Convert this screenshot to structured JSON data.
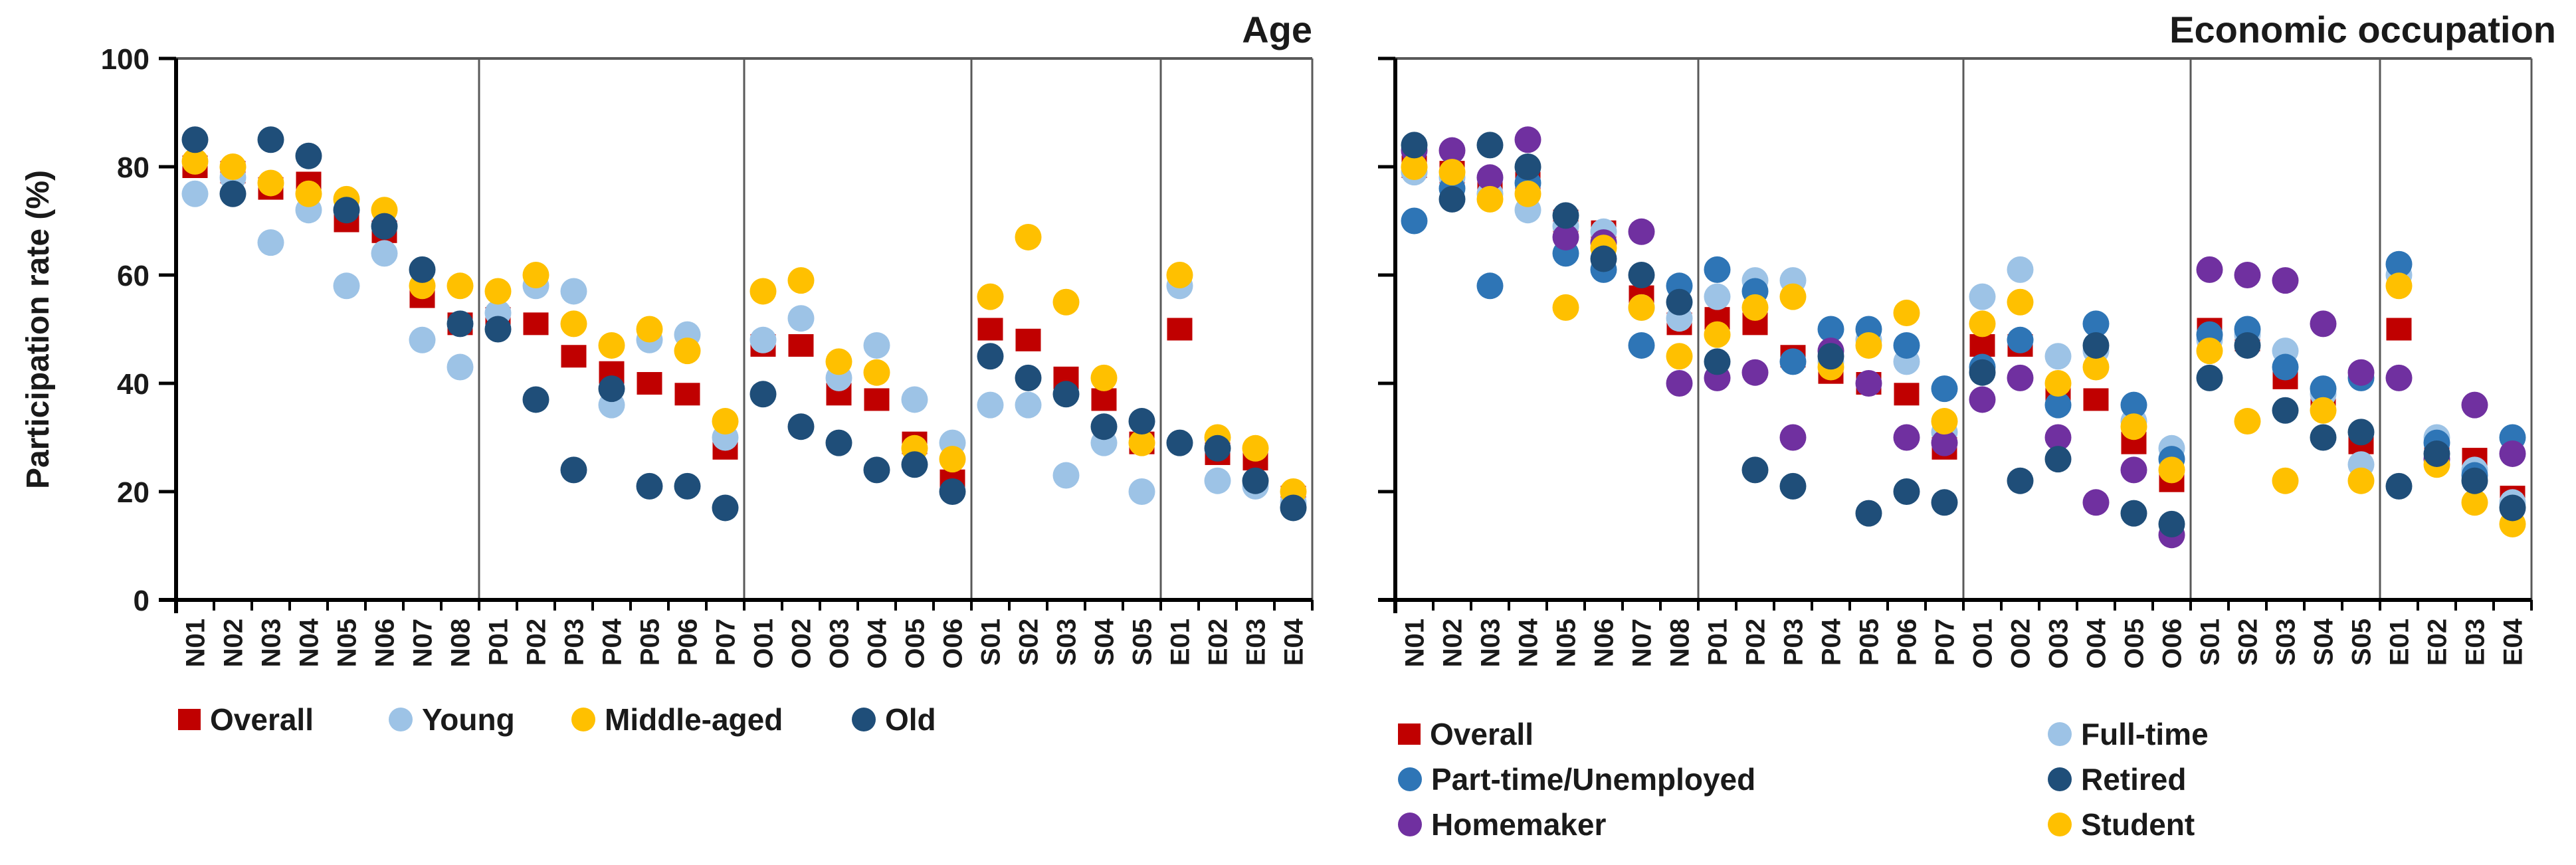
{
  "figure": {
    "background": "#ffffff",
    "y_axis_title": "Participation rate (%)"
  },
  "chart_data": [
    {
      "type": "scatter",
      "title": "Age",
      "xlabel": "",
      "ylabel": "Participation rate (%)",
      "ylim": [
        0,
        100
      ],
      "yticks": [
        0,
        20,
        40,
        60,
        80,
        100
      ],
      "grid": false,
      "legend_position": "bottom",
      "categories": [
        "N01",
        "N02",
        "N03",
        "N04",
        "N05",
        "N06",
        "N07",
        "N08",
        "P01",
        "P02",
        "P03",
        "P04",
        "P05",
        "P06",
        "P07",
        "O01",
        "O02",
        "O03",
        "O04",
        "O05",
        "O06",
        "S01",
        "S02",
        "S03",
        "S04",
        "S05",
        "E01",
        "E02",
        "E03",
        "E04"
      ],
      "group_separators_after": [
        "N08",
        "P07",
        "O06",
        "S05"
      ],
      "series": [
        {
          "name": "Overall",
          "marker": "square",
          "color": "#C00000",
          "values": [
            80,
            79,
            76,
            77,
            70,
            68,
            56,
            51,
            52,
            51,
            45,
            42,
            40,
            38,
            28,
            47,
            47,
            38,
            37,
            29,
            22,
            50,
            48,
            41,
            37,
            29,
            50,
            27,
            26,
            19
          ]
        },
        {
          "name": "Young",
          "marker": "circle",
          "color": "#9DC3E6",
          "values": [
            75,
            78,
            66,
            72,
            58,
            64,
            48,
            43,
            53,
            58,
            57,
            36,
            48,
            49,
            30,
            48,
            52,
            41,
            47,
            37,
            29,
            36,
            36,
            23,
            29,
            20,
            58,
            22,
            21,
            18
          ]
        },
        {
          "name": "Middle-aged",
          "marker": "circle",
          "color": "#FFC000",
          "values": [
            81,
            80,
            77,
            75,
            74,
            72,
            58,
            58,
            57,
            60,
            51,
            47,
            50,
            46,
            33,
            57,
            59,
            44,
            42,
            28,
            26,
            56,
            67,
            55,
            41,
            29,
            60,
            30,
            28,
            20
          ]
        },
        {
          "name": "Old",
          "marker": "circle",
          "color": "#1F4E79",
          "values": [
            85,
            75,
            85,
            82,
            72,
            69,
            61,
            51,
            50,
            37,
            24,
            39,
            21,
            21,
            17,
            38,
            32,
            29,
            24,
            25,
            20,
            45,
            41,
            38,
            32,
            33,
            29,
            28,
            22,
            17
          ]
        }
      ]
    },
    {
      "type": "scatter",
      "title": "Economic occupation",
      "xlabel": "",
      "ylabel": "Participation rate (%)",
      "ylim": [
        0,
        100
      ],
      "yticks": [
        0,
        20,
        40,
        60,
        80,
        100
      ],
      "grid": false,
      "legend_position": "bottom",
      "categories": [
        "N01",
        "N02",
        "N03",
        "N04",
        "N05",
        "N06",
        "N07",
        "N08",
        "P01",
        "P02",
        "P03",
        "P04",
        "P05",
        "P06",
        "P07",
        "O01",
        "O02",
        "O03",
        "O04",
        "O05",
        "O06",
        "S01",
        "S02",
        "S03",
        "S04",
        "S05",
        "E01",
        "E02",
        "E03",
        "E04"
      ],
      "group_separators_after": [
        "N08",
        "P07",
        "O06",
        "S05"
      ],
      "series": [
        {
          "name": "Overall",
          "marker": "square",
          "color": "#C00000",
          "values": [
            80,
            79,
            76,
            77,
            70,
            68,
            56,
            51,
            52,
            51,
            45,
            42,
            40,
            38,
            28,
            47,
            47,
            38,
            37,
            29,
            22,
            50,
            48,
            41,
            37,
            29,
            50,
            27,
            26,
            19
          ]
        },
        {
          "name": "Full-time",
          "marker": "circle",
          "color": "#9DC3E6",
          "values": [
            79,
            78,
            75,
            72,
            69,
            68,
            54,
            52,
            56,
            59,
            59,
            44,
            48,
            44,
            31,
            56,
            61,
            45,
            46,
            33,
            28,
            48,
            49,
            46,
            38,
            25,
            60,
            30,
            24,
            18
          ]
        },
        {
          "name": "Part-time/Unemployed",
          "marker": "circle",
          "color": "#2E75B6",
          "values": [
            70,
            76,
            58,
            77,
            64,
            61,
            47,
            58,
            61,
            57,
            44,
            50,
            50,
            47,
            39,
            43,
            48,
            36,
            51,
            36,
            26,
            49,
            50,
            43,
            39,
            41,
            62,
            29,
            23,
            30
          ]
        },
        {
          "name": "Homemaker",
          "marker": "circle",
          "color": "#7030A0",
          "values": [
            83,
            83,
            78,
            85,
            67,
            66,
            68,
            40,
            41,
            42,
            30,
            46,
            40,
            30,
            29,
            37,
            41,
            30,
            18,
            24,
            12,
            61,
            60,
            59,
            51,
            42,
            41,
            26,
            36,
            27
          ]
        },
        {
          "name": "Student",
          "marker": "circle",
          "color": "#FFC000",
          "values": [
            80,
            79,
            74,
            75,
            54,
            65,
            54,
            45,
            49,
            54,
            56,
            43,
            47,
            53,
            33,
            51,
            55,
            40,
            43,
            32,
            24,
            46,
            33,
            22,
            35,
            22,
            58,
            25,
            18,
            14
          ]
        },
        {
          "name": "Retired",
          "marker": "circle",
          "color": "#1F4E79",
          "values": [
            84,
            74,
            84,
            80,
            71,
            63,
            60,
            55,
            44,
            24,
            21,
            45,
            16,
            20,
            18,
            42,
            22,
            26,
            47,
            16,
            14,
            41,
            47,
            35,
            30,
            31,
            21,
            27,
            22,
            17
          ]
        }
      ]
    }
  ]
}
